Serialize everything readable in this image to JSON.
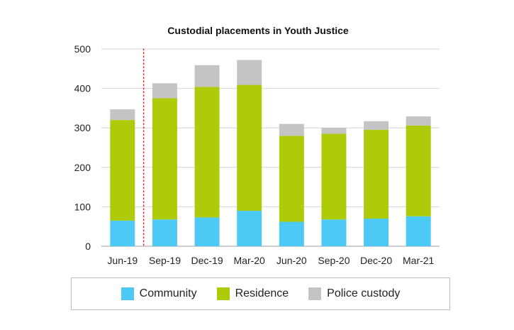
{
  "chart_data": {
    "type": "bar",
    "stacked": true,
    "title": "Custodial placements in Youth Justice",
    "categories": [
      "Jun-19",
      "Sep-19",
      "Dec-19",
      "Mar-20",
      "Jun-20",
      "Sep-20",
      "Dec-20",
      "Mar-21"
    ],
    "series": [
      {
        "name": "Community",
        "color": "#4dc9f6",
        "values": [
          65,
          68,
          73,
          90,
          62,
          68,
          70,
          76
        ]
      },
      {
        "name": "Residence",
        "color": "#aecb0a",
        "values": [
          255,
          307,
          331,
          319,
          218,
          217,
          225,
          230
        ]
      },
      {
        "name": "Police custody",
        "color": "#c4c4c4",
        "values": [
          27,
          38,
          55,
          63,
          30,
          15,
          22,
          23
        ]
      }
    ],
    "ylim": [
      0,
      500
    ],
    "yticks": [
      0,
      100,
      200,
      300,
      400,
      500
    ],
    "grid": true,
    "reference_line": {
      "between": [
        "Jun-19",
        "Sep-19"
      ],
      "style": "dotted",
      "color": "#e03030"
    },
    "legend_position": "bottom"
  }
}
